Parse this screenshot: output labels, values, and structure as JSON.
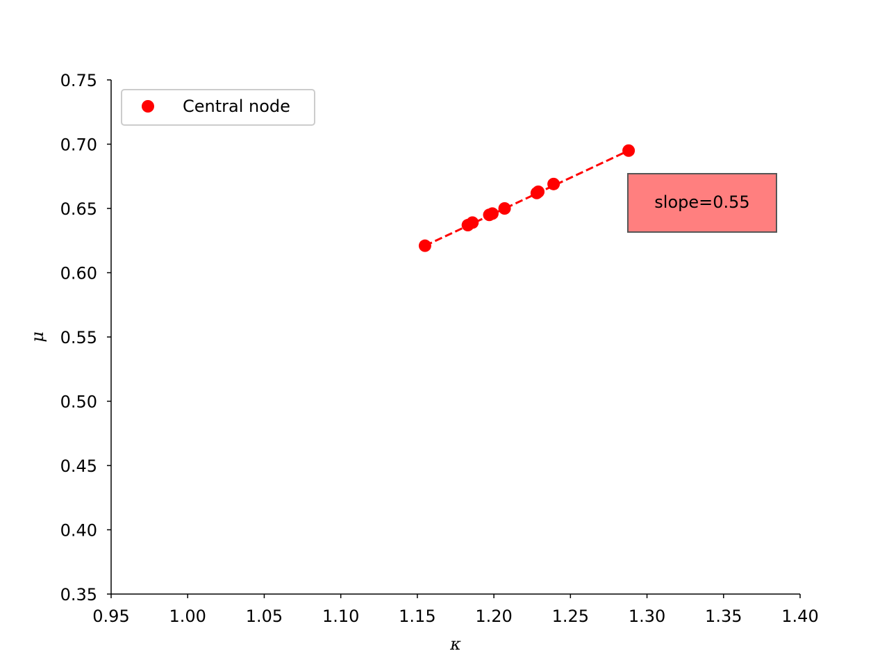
{
  "chart_data": {
    "type": "scatter",
    "title": "",
    "xlabel": "κ",
    "ylabel": "μ",
    "xlim": [
      0.95,
      1.4
    ],
    "ylim": [
      0.35,
      0.75
    ],
    "xticks": [
      "0.95",
      "1.00",
      "1.05",
      "1.10",
      "1.15",
      "1.20",
      "1.25",
      "1.30",
      "1.35",
      "1.40"
    ],
    "yticks": [
      "0.35",
      "0.40",
      "0.45",
      "0.50",
      "0.55",
      "0.60",
      "0.65",
      "0.70",
      "0.75"
    ],
    "grid": false,
    "legend": {
      "position": "top-left",
      "entries": [
        "Central node"
      ]
    },
    "series": [
      {
        "name": "Central node",
        "color": "#ff0000",
        "marker": "circle",
        "x": [
          1.155,
          1.183,
          1.186,
          1.197,
          1.199,
          1.207,
          1.228,
          1.229,
          1.239,
          1.288
        ],
        "y": [
          0.621,
          0.637,
          0.639,
          0.645,
          0.646,
          0.65,
          0.662,
          0.663,
          0.669,
          0.695
        ]
      }
    ],
    "fit_line": {
      "style": "dashed",
      "color": "#ff0000",
      "x": [
        1.155,
        1.288
      ],
      "y": [
        0.621,
        0.695
      ]
    },
    "annotations": [
      {
        "text": "slope=0.55",
        "background": "#ff7f7f",
        "border": "#555555"
      }
    ]
  }
}
